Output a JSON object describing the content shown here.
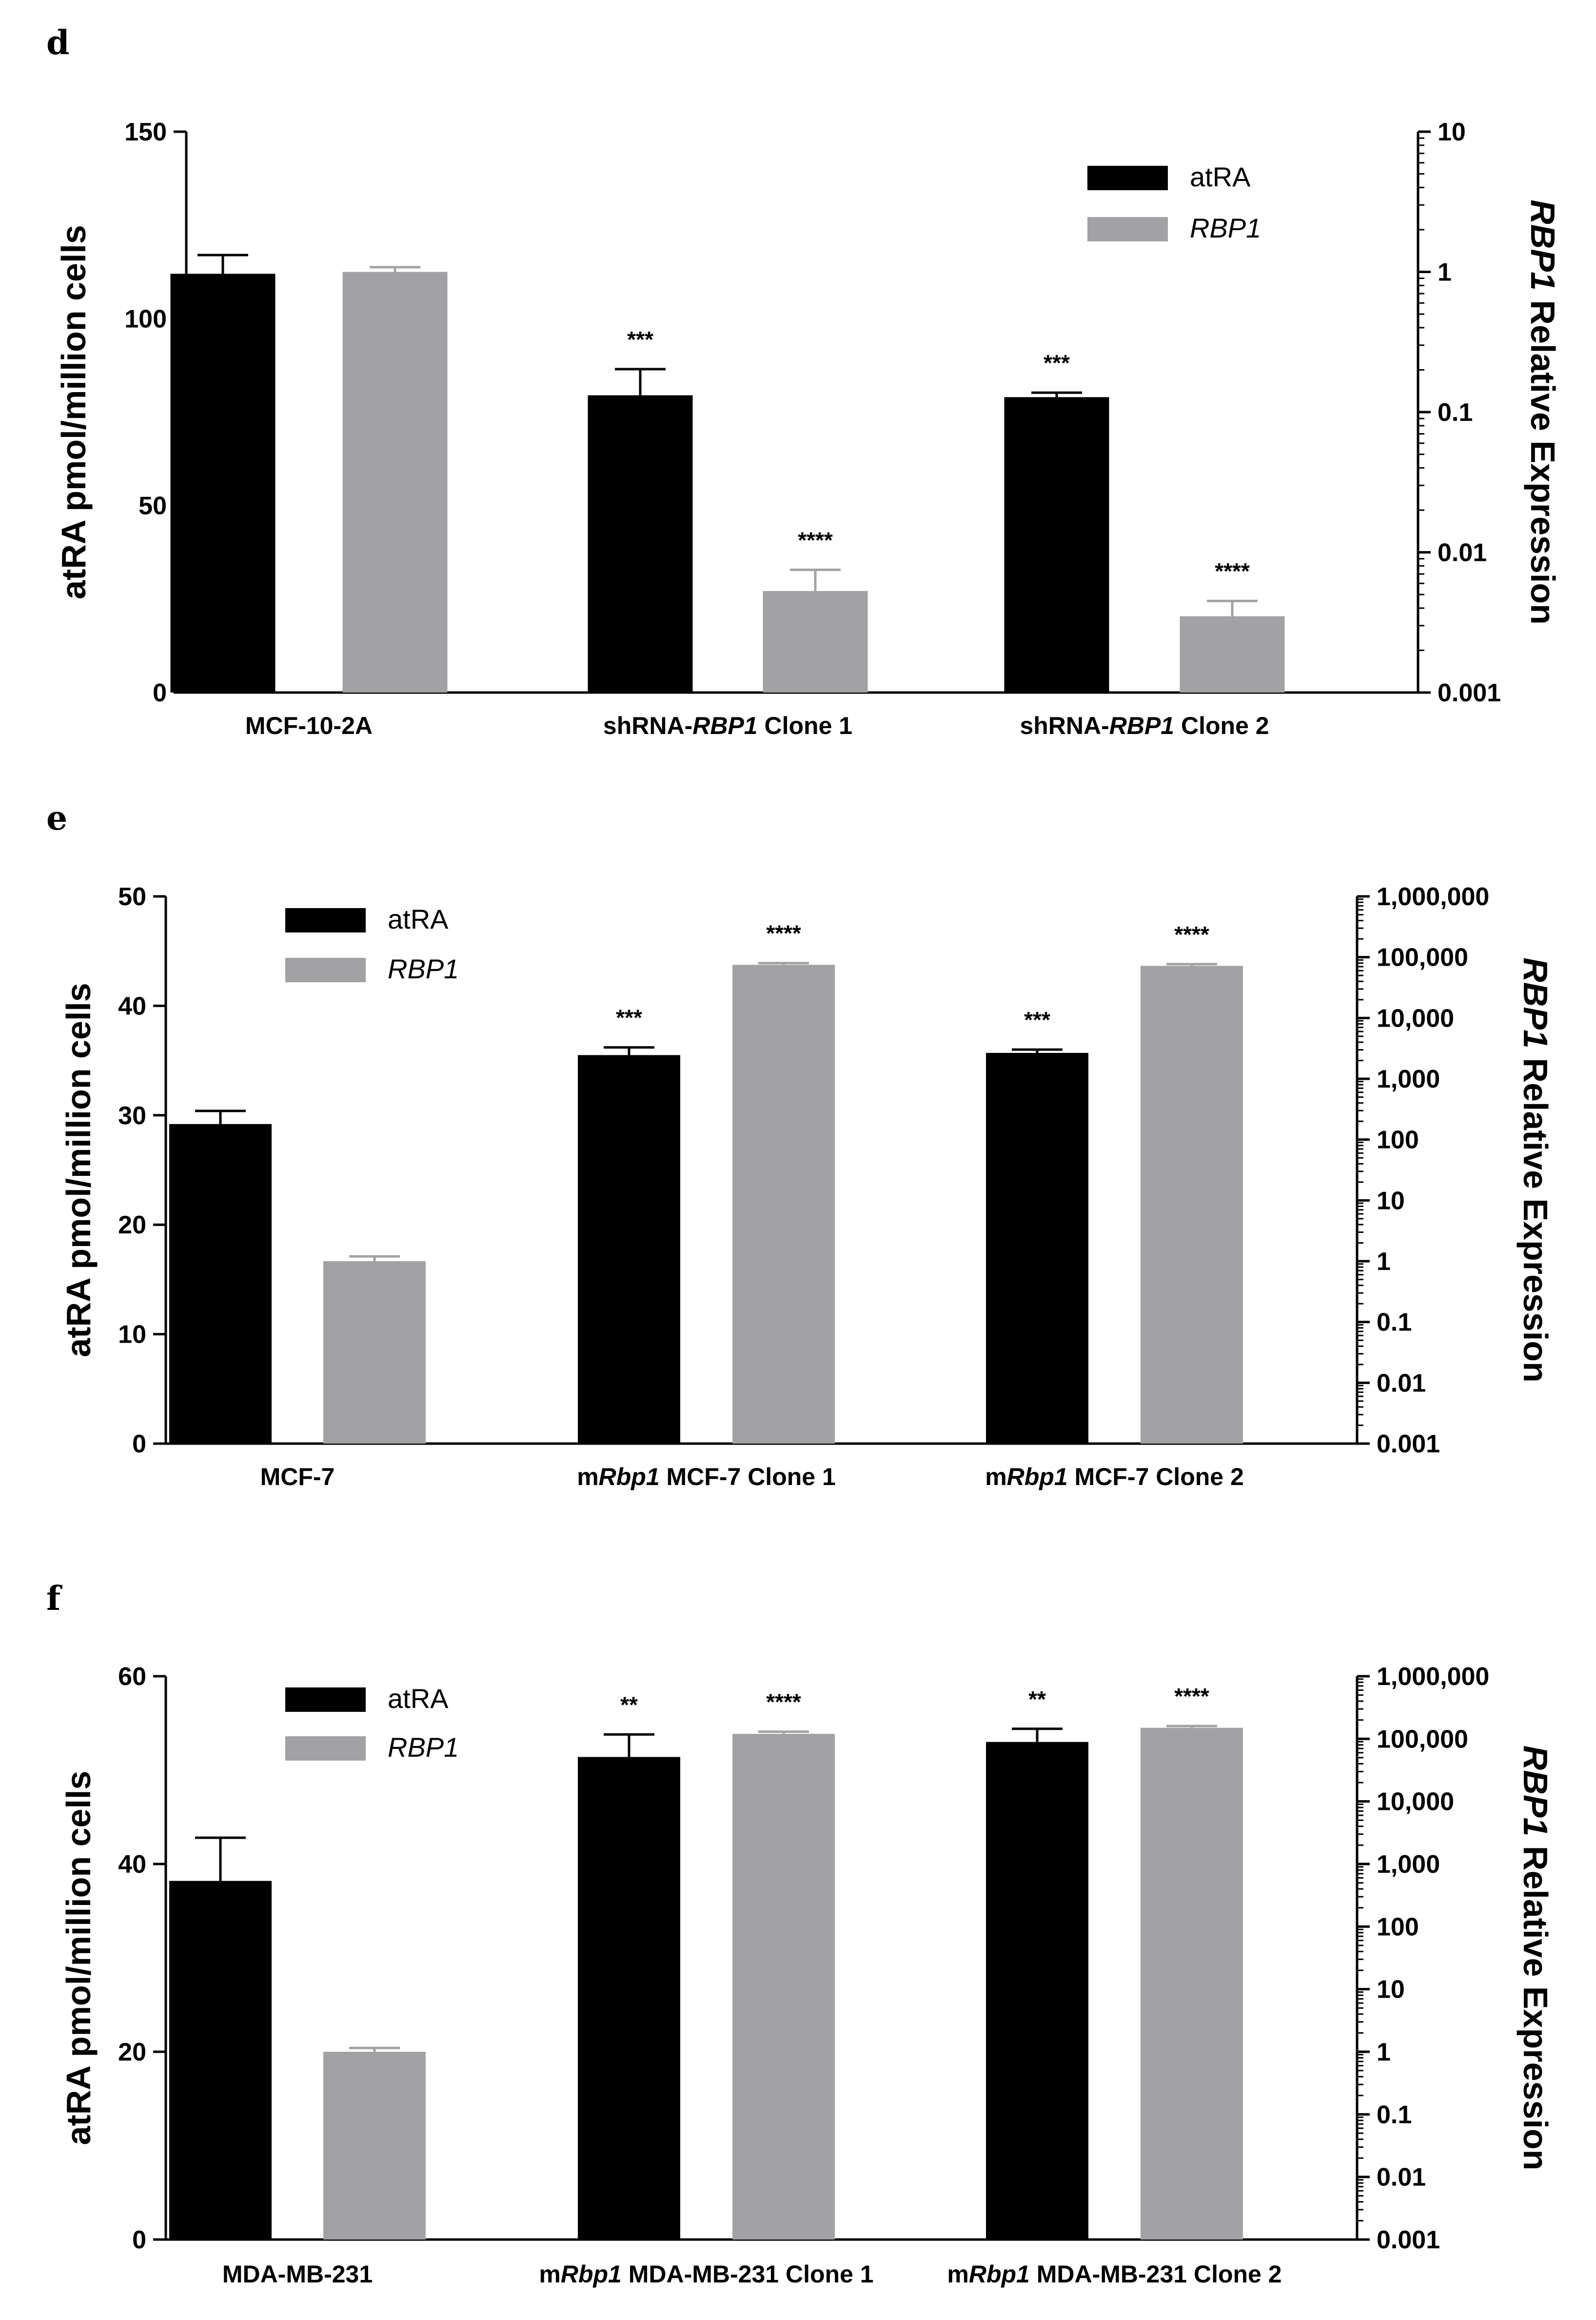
{
  "chart_data": [
    {
      "panel": "d",
      "type": "bar",
      "categories": [
        "MCF-10-2A",
        "shRNA-RBP1 Clone 1",
        "shRNA-RBP1 Clone 2"
      ],
      "category_parts": [
        [
          {
            "t": "MCF-10-2A",
            "i": false
          }
        ],
        [
          {
            "t": "shRNA-",
            "i": false
          },
          {
            "t": "RBP1",
            "i": true
          },
          {
            "t": " Clone 1",
            "i": false
          }
        ],
        [
          {
            "t": "shRNA-",
            "i": false
          },
          {
            "t": "RBP1",
            "i": true
          },
          {
            "t": " Clone 2",
            "i": false
          }
        ]
      ],
      "series": [
        {
          "name": "atRA",
          "axis": "left",
          "color": "#000000",
          "values": [
            112,
            79.5,
            79
          ],
          "errors": [
            5,
            7,
            1.2
          ],
          "sig": [
            "",
            "***",
            "***"
          ]
        },
        {
          "name": "RBP1",
          "axis": "right",
          "color": "#a2a2a4",
          "values": [
            1.0,
            0.0053,
            0.0035
          ],
          "error_tops": [
            1.08,
            0.0075,
            0.0045
          ],
          "sig": [
            "",
            "****",
            "****"
          ]
        }
      ],
      "ylabel": "atRA pmol/million cells",
      "ylim": [
        0,
        150
      ],
      "yticks": [
        0,
        50,
        100,
        150
      ],
      "y2label_italic": "RBP1",
      "y2label_rest": " Relative Expression",
      "y2scale": "log",
      "y2lim": [
        0.001,
        10
      ],
      "y2ticks": [
        "0.001",
        "0.01",
        "0.1",
        "1",
        "10"
      ],
      "legend": {
        "placement": "top-right",
        "entries": [
          {
            "label": "atRA",
            "italic": false
          },
          {
            "label": "RBP1",
            "italic": true
          }
        ]
      }
    },
    {
      "panel": "e",
      "type": "bar",
      "categories": [
        "MCF-7",
        "mRbp1 MCF-7 Clone 1",
        "mRbp1 MCF-7 Clone 2"
      ],
      "category_parts": [
        [
          {
            "t": "MCF-7",
            "i": false
          }
        ],
        [
          {
            "t": "m",
            "i": false
          },
          {
            "t": "Rbp1",
            "i": true
          },
          {
            "t": " MCF-7 Clone 1",
            "i": false
          }
        ],
        [
          {
            "t": "m",
            "i": false
          },
          {
            "t": "Rbp1",
            "i": true
          },
          {
            "t": " MCF-7 Clone 2",
            "i": false
          }
        ]
      ],
      "series": [
        {
          "name": "atRA",
          "axis": "left",
          "color": "#000000",
          "values": [
            29.2,
            35.5,
            35.7
          ],
          "errors": [
            1.2,
            0.7,
            0.3
          ],
          "sig": [
            "",
            "***",
            "***"
          ]
        },
        {
          "name": "RBP1",
          "axis": "right",
          "color": "#a2a2a4",
          "values": [
            1.0,
            75000,
            72000
          ],
          "error_tops": [
            1.2,
            80000,
            77000
          ],
          "sig": [
            "",
            "****",
            "****"
          ]
        }
      ],
      "ylabel": "atRA pmol/million cells",
      "ylim": [
        0,
        50
      ],
      "yticks": [
        0,
        10,
        20,
        30,
        40,
        50
      ],
      "y2label_italic": "RBP1",
      "y2label_rest": " Relative Expression",
      "y2scale": "log",
      "y2lim": [
        0.001,
        1000000
      ],
      "y2ticks": [
        "0.001",
        "0.01",
        "0.1",
        "1",
        "10",
        "100",
        "1,000",
        "10,000",
        "100,000",
        "1,000,000"
      ],
      "legend": {
        "placement": "top-left",
        "entries": [
          {
            "label": "atRA",
            "italic": false
          },
          {
            "label": "RBP1",
            "italic": true
          }
        ]
      }
    },
    {
      "panel": "f",
      "type": "bar",
      "categories": [
        "MDA-MB-231",
        "mRbp1 MDA-MB-231 Clone 1",
        "mRbp1 MDA-MB-231 Clone 2"
      ],
      "category_parts": [
        [
          {
            "t": "MDA-MB-231",
            "i": false
          }
        ],
        [
          {
            "t": "m",
            "i": false
          },
          {
            "t": "Rbp1",
            "i": true
          },
          {
            "t": " MDA-MB-231 Clone 1",
            "i": false
          }
        ],
        [
          {
            "t": "m",
            "i": false
          },
          {
            "t": "Rbp1",
            "i": true
          },
          {
            "t": " MDA-MB-231 Clone 2",
            "i": false
          }
        ]
      ],
      "series": [
        {
          "name": "atRA",
          "axis": "left",
          "color": "#000000",
          "values": [
            38.2,
            51.4,
            53
          ],
          "errors": [
            4.6,
            2.4,
            1.4
          ],
          "sig": [
            "",
            "**",
            "**"
          ]
        },
        {
          "name": "RBP1",
          "axis": "right",
          "color": "#a2a2a4",
          "values": [
            1.0,
            120000,
            150000
          ],
          "error_tops": [
            1.15,
            130000,
            160000
          ],
          "sig": [
            "",
            "****",
            "****"
          ]
        }
      ],
      "ylabel": "atRA pmol/million cells",
      "ylim": [
        0,
        60
      ],
      "yticks": [
        0,
        20,
        40,
        60
      ],
      "y2label_italic": "RBP1",
      "y2label_rest": " Relative Expression",
      "y2scale": "log",
      "y2lim": [
        0.001,
        1000000
      ],
      "y2ticks": [
        "0.001",
        "0.01",
        "0.1",
        "1",
        "10",
        "100",
        "1,000",
        "10,000",
        "100,000",
        "1,000,000"
      ],
      "legend": {
        "placement": "top-left",
        "entries": [
          {
            "label": "atRA",
            "italic": false
          },
          {
            "label": "RBP1",
            "italic": true
          }
        ]
      }
    }
  ]
}
